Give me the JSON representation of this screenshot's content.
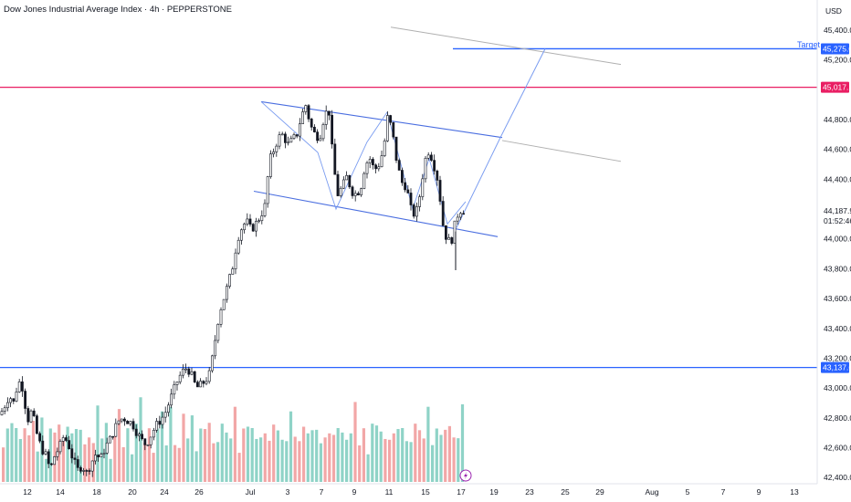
{
  "header": {
    "title": "Dow Jones Industrial Average Index · 4h · PEPPERSTONE",
    "currency": "USD"
  },
  "colors": {
    "up": "#ffffff",
    "down": "#131722",
    "vol_up": "#8fd3c7",
    "vol_down": "#f2a7a7",
    "level_red": "#e91e63",
    "level_blue": "#2962ff",
    "channel": "#4a6ee0",
    "projection": "#7a9cf0",
    "grey_trend": "#b0b0b0"
  },
  "price_axis": {
    "ticks": [
      "45,400.0",
      "45,200.0",
      "44,800.0",
      "44,600.0",
      "44,400.0",
      "44,000.0",
      "43,800.0",
      "43,600.0",
      "43,400.0",
      "43,200.0",
      "43,000.0",
      "42,800.0",
      "42,600.0",
      "42,400.0"
    ],
    "tick_values": [
      45400,
      45200,
      44800,
      44600,
      44400,
      44000,
      43800,
      43600,
      43400,
      43200,
      43000,
      42800,
      42600,
      42400
    ],
    "tags": [
      {
        "label": "45,275.0",
        "value": 45275,
        "color": "#2962ff"
      },
      {
        "label": "45,017.1",
        "value": 45017.1,
        "color": "#e91e63"
      },
      {
        "label": "43,137.6",
        "value": 43137.6,
        "color": "#2962ff"
      }
    ],
    "last_price": "44,187.9",
    "countdown": "01:52:46"
  },
  "time_axis": {
    "labels": [
      "12",
      "14",
      "18",
      "20",
      "24",
      "26",
      "Jul",
      "3",
      "7",
      "9",
      "11",
      "15",
      "17",
      "19",
      "23",
      "25",
      "29",
      "Aug",
      "5",
      "7",
      "9",
      "11",
      "13"
    ]
  },
  "annotations": {
    "target_label": "Target",
    "target_value": 45275,
    "resistance_value": 45017.1,
    "support_value": 43137.6
  },
  "chart_data": {
    "type": "candlestick",
    "symbol": "Dow Jones Industrial Average Index",
    "timeframe": "4h",
    "source": "PEPPERSTONE",
    "ylim": [
      42370,
      45480
    ],
    "close_path": [
      [
        0,
        42820
      ],
      [
        5,
        42880
      ],
      [
        10,
        42950
      ],
      [
        15,
        42900
      ],
      [
        20,
        43050
      ],
      [
        25,
        43000
      ],
      [
        30,
        42780
      ],
      [
        35,
        42850
      ],
      [
        40,
        42700
      ],
      [
        45,
        42600
      ],
      [
        50,
        42550
      ],
      [
        55,
        42450
      ],
      [
        60,
        42550
      ],
      [
        65,
        42600
      ],
      [
        70,
        42680
      ],
      [
        75,
        42620
      ],
      [
        80,
        42520
      ],
      [
        85,
        42450
      ],
      [
        90,
        42480
      ],
      [
        95,
        42430
      ],
      [
        100,
        42500
      ],
      [
        105,
        42560
      ],
      [
        110,
        42520
      ],
      [
        115,
        42600
      ],
      [
        120,
        42650
      ],
      [
        125,
        42720
      ],
      [
        130,
        42780
      ],
      [
        135,
        42800
      ],
      [
        140,
        42780
      ],
      [
        145,
        42760
      ],
      [
        150,
        42700
      ],
      [
        155,
        42650
      ],
      [
        160,
        42620
      ],
      [
        165,
        42680
      ],
      [
        170,
        42740
      ],
      [
        175,
        42780
      ],
      [
        180,
        42820
      ],
      [
        185,
        42900
      ],
      [
        190,
        42980
      ],
      [
        195,
        43060
      ],
      [
        200,
        43110
      ],
      [
        205,
        43140
      ],
      [
        210,
        43080
      ],
      [
        215,
        43000
      ],
      [
        220,
        43020
      ],
      [
        225,
        43050
      ],
      [
        230,
        43100
      ],
      [
        235,
        43300
      ],
      [
        240,
        43500
      ],
      [
        245,
        43600
      ],
      [
        250,
        43700
      ],
      [
        255,
        43820
      ],
      [
        260,
        44000
      ],
      [
        265,
        44080
      ],
      [
        270,
        44120
      ],
      [
        275,
        44060
      ],
      [
        280,
        44100
      ],
      [
        285,
        44150
      ],
      [
        290,
        44220
      ],
      [
        295,
        44520
      ],
      [
        300,
        44600
      ],
      [
        305,
        44680
      ],
      [
        310,
        44700
      ],
      [
        315,
        44630
      ],
      [
        320,
        44660
      ],
      [
        325,
        44700
      ],
      [
        330,
        44820
      ],
      [
        335,
        44900
      ],
      [
        340,
        44760
      ],
      [
        345,
        44700
      ],
      [
        350,
        44680
      ],
      [
        355,
        44820
      ],
      [
        360,
        44880
      ],
      [
        365,
        44500
      ],
      [
        370,
        44300
      ],
      [
        375,
        44350
      ],
      [
        380,
        44420
      ],
      [
        385,
        44320
      ],
      [
        390,
        44300
      ],
      [
        395,
        44340
      ],
      [
        400,
        44500
      ],
      [
        405,
        44540
      ],
      [
        410,
        44460
      ],
      [
        415,
        44500
      ],
      [
        420,
        44600
      ],
      [
        425,
        44840
      ],
      [
        430,
        44700
      ],
      [
        435,
        44500
      ],
      [
        440,
        44380
      ],
      [
        445,
        44350
      ],
      [
        450,
        44200
      ],
      [
        455,
        44150
      ],
      [
        460,
        44300
      ],
      [
        465,
        44520
      ],
      [
        470,
        44600
      ],
      [
        475,
        44500
      ],
      [
        480,
        44380
      ],
      [
        485,
        44100
      ],
      [
        490,
        43980
      ],
      [
        495,
        44000
      ],
      [
        500,
        44150
      ],
      [
        505,
        44200
      ],
      [
        510,
        44187.9
      ]
    ],
    "volume_ratio": [
      0.45,
      0.55,
      0.5,
      0.62,
      0.4,
      0.7,
      0.48,
      0.52,
      0.35,
      0.6,
      0.3,
      0.55,
      0.42,
      0.66,
      0.38,
      0.72,
      0.5,
      0.45,
      0.6,
      0.35,
      0.58,
      0.4,
      0.65,
      0.5,
      0.55,
      0.3,
      0.47,
      0.62,
      0.4,
      0.5,
      0.36,
      0.6,
      0.72,
      0.45,
      0.5,
      0.38,
      0.55,
      0.6,
      0.42,
      0.7,
      0.48,
      0.35,
      0.58,
      0.5,
      0.62,
      0.4,
      0.55,
      0.45,
      0.68,
      0.36,
      0.52,
      0.6,
      0.42,
      0.5,
      0.7,
      0.38,
      0.55,
      0.47,
      0.62,
      0.4,
      0.58,
      0.5,
      0.35,
      0.66,
      0.48,
      0.55,
      0.42,
      0.6,
      0.52,
      0.38,
      0.72,
      0.5,
      0.44,
      0.6,
      0.36,
      0.58,
      0.5,
      0.4,
      0.62,
      0.46,
      0.55,
      0.5,
      0.68,
      0.42,
      0.5,
      0.36,
      0.6,
      0.48,
      0.58,
      0.4,
      0.55,
      0.5,
      0.45,
      0.62,
      0.38,
      0.52,
      0.6,
      0.44,
      0.5,
      0.7,
      0.48,
      0.55,
      0.4,
      0.6,
      0.52,
      0.58,
      0.45,
      0.66,
      0.9
    ],
    "trendlines": {
      "channel_upper": [
        [
          44920,
          286
        ],
        [
          44680,
          550
        ]
      ],
      "channel_lower": [
        [
          44320,
          278
        ],
        [
          44015,
          545
        ]
      ],
      "grey_upper": [
        [
          45420,
          428
        ],
        [
          45170,
          680
        ]
      ],
      "grey_lower": [
        [
          44660,
          550
        ],
        [
          44520,
          680
        ]
      ],
      "projection": [
        [
          44075,
          500
        ],
        [
          44680,
          548
        ],
        [
          45275,
          597
        ]
      ],
      "wave": [
        [
          44920,
          286
        ],
        [
          44580,
          348
        ],
        [
          44200,
          368
        ],
        [
          44650,
          402
        ],
        [
          44850,
          424
        ],
        [
          44200,
          452
        ],
        [
          44540,
          470
        ],
        [
          44100,
          490
        ],
        [
          44250,
          510
        ]
      ]
    }
  }
}
